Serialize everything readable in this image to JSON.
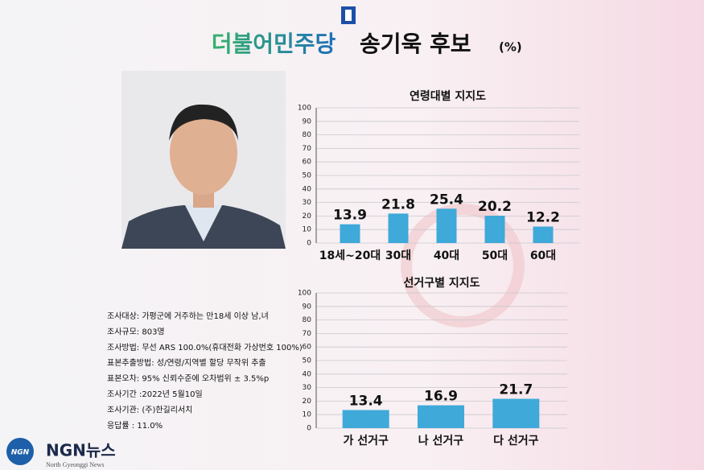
{
  "header": {
    "party": "더불어민주당",
    "candidate": "송기욱 후보",
    "unit": "(%)"
  },
  "chart_data": [
    {
      "type": "bar",
      "title": "연령대별 지지도",
      "categories": [
        "18세~20대",
        "30대",
        "40대",
        "50대",
        "60대"
      ],
      "values": [
        13.9,
        21.8,
        25.4,
        20.2,
        12.2
      ],
      "color": "#3fa9d9",
      "ylim": [
        0,
        100
      ],
      "yticks": [
        0,
        10,
        20,
        30,
        40,
        50,
        60,
        70,
        80,
        90,
        100
      ],
      "grid": true
    },
    {
      "type": "bar",
      "title": "선거구별 지지도",
      "categories": [
        "가 선거구",
        "나 선거구",
        "다 선거구"
      ],
      "values": [
        13.4,
        16.9,
        21.7
      ],
      "color": "#3fa9d9",
      "ylim": [
        0,
        100
      ],
      "yticks": [
        0,
        10,
        20,
        30,
        40,
        50,
        60,
        70,
        80,
        90,
        100
      ],
      "grid": true
    }
  ],
  "survey": [
    "조사대상: 가평군에 거주하는 만18세 이상 남,녀",
    "조사규모: 803명",
    "조사방법: 무선 ARS 100.0%(휴대전화 가상번호 100%)",
    "표본추출방법: 성/연령/지역별 할당 무작위 추출",
    "표본오차: 95% 신뢰수준에 오차범위 ± 3.5%p",
    "조사기간 :2022년 5월10일",
    "조사기관: (주)한길리서치",
    "응답률 : 11.0%"
  ],
  "logo": {
    "name": "NGN뉴스",
    "subtitle": "North Gyeonggi News"
  }
}
